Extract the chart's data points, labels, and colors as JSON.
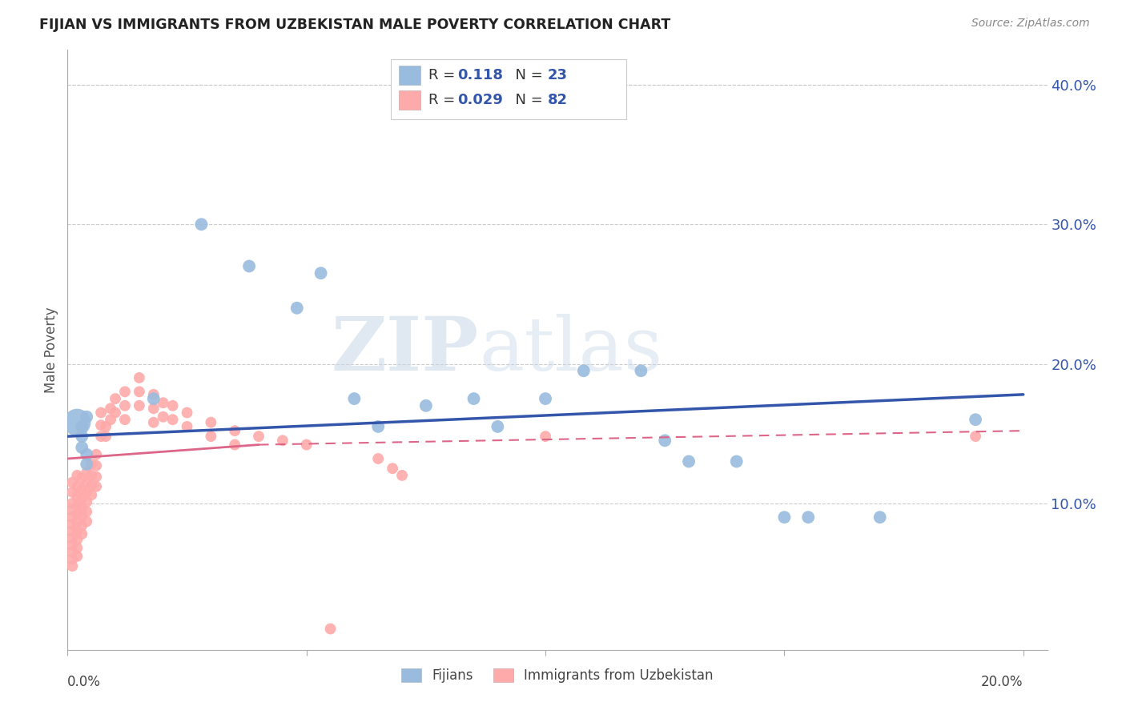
{
  "title": "FIJIAN VS IMMIGRANTS FROM UZBEKISTAN MALE POVERTY CORRELATION CHART",
  "source": "Source: ZipAtlas.com",
  "ylabel": "Male Poverty",
  "legend_blue_label": "Fijians",
  "legend_pink_label": "Immigrants from Uzbekistan",
  "xlim": [
    0.0,
    0.205
  ],
  "ylim": [
    -0.005,
    0.425
  ],
  "yticks": [
    0.1,
    0.2,
    0.3,
    0.4
  ],
  "ytick_labels": [
    "10.0%",
    "20.0%",
    "30.0%",
    "40.0%"
  ],
  "background_color": "#ffffff",
  "blue_color": "#99bbdd",
  "pink_color": "#ffaaaa",
  "blue_line_color": "#3355aa",
  "pink_line_color": "#dd6688",
  "watermark_zip": "ZIP",
  "watermark_atlas": "atlas",
  "fijian_points": [
    [
      0.003,
      0.155
    ],
    [
      0.003,
      0.148
    ],
    [
      0.003,
      0.14
    ],
    [
      0.004,
      0.135
    ],
    [
      0.004,
      0.128
    ],
    [
      0.004,
      0.162
    ],
    [
      0.018,
      0.175
    ],
    [
      0.028,
      0.3
    ],
    [
      0.038,
      0.27
    ],
    [
      0.048,
      0.24
    ],
    [
      0.053,
      0.265
    ],
    [
      0.06,
      0.175
    ],
    [
      0.065,
      0.155
    ],
    [
      0.075,
      0.17
    ],
    [
      0.085,
      0.175
    ],
    [
      0.09,
      0.155
    ],
    [
      0.1,
      0.175
    ],
    [
      0.108,
      0.195
    ],
    [
      0.12,
      0.195
    ],
    [
      0.125,
      0.145
    ],
    [
      0.13,
      0.13
    ],
    [
      0.14,
      0.13
    ],
    [
      0.15,
      0.09
    ],
    [
      0.155,
      0.09
    ],
    [
      0.17,
      0.09
    ],
    [
      0.19,
      0.16
    ]
  ],
  "uzbek_points": [
    [
      0.001,
      0.115
    ],
    [
      0.001,
      0.108
    ],
    [
      0.001,
      0.1
    ],
    [
      0.001,
      0.095
    ],
    [
      0.001,
      0.09
    ],
    [
      0.001,
      0.085
    ],
    [
      0.001,
      0.08
    ],
    [
      0.001,
      0.075
    ],
    [
      0.001,
      0.07
    ],
    [
      0.001,
      0.065
    ],
    [
      0.001,
      0.06
    ],
    [
      0.001,
      0.055
    ],
    [
      0.002,
      0.12
    ],
    [
      0.002,
      0.112
    ],
    [
      0.002,
      0.105
    ],
    [
      0.002,
      0.098
    ],
    [
      0.002,
      0.092
    ],
    [
      0.002,
      0.086
    ],
    [
      0.002,
      0.08
    ],
    [
      0.002,
      0.074
    ],
    [
      0.002,
      0.068
    ],
    [
      0.002,
      0.062
    ],
    [
      0.003,
      0.118
    ],
    [
      0.003,
      0.11
    ],
    [
      0.003,
      0.104
    ],
    [
      0.003,
      0.097
    ],
    [
      0.003,
      0.091
    ],
    [
      0.003,
      0.084
    ],
    [
      0.003,
      0.078
    ],
    [
      0.004,
      0.122
    ],
    [
      0.004,
      0.115
    ],
    [
      0.004,
      0.108
    ],
    [
      0.004,
      0.101
    ],
    [
      0.004,
      0.094
    ],
    [
      0.004,
      0.087
    ],
    [
      0.005,
      0.128
    ],
    [
      0.005,
      0.12
    ],
    [
      0.005,
      0.113
    ],
    [
      0.005,
      0.106
    ],
    [
      0.006,
      0.135
    ],
    [
      0.006,
      0.127
    ],
    [
      0.006,
      0.119
    ],
    [
      0.006,
      0.112
    ],
    [
      0.007,
      0.165
    ],
    [
      0.007,
      0.156
    ],
    [
      0.007,
      0.148
    ],
    [
      0.008,
      0.155
    ],
    [
      0.008,
      0.148
    ],
    [
      0.009,
      0.168
    ],
    [
      0.009,
      0.16
    ],
    [
      0.01,
      0.175
    ],
    [
      0.01,
      0.165
    ],
    [
      0.012,
      0.18
    ],
    [
      0.012,
      0.17
    ],
    [
      0.012,
      0.16
    ],
    [
      0.015,
      0.19
    ],
    [
      0.015,
      0.18
    ],
    [
      0.015,
      0.17
    ],
    [
      0.018,
      0.178
    ],
    [
      0.018,
      0.168
    ],
    [
      0.018,
      0.158
    ],
    [
      0.02,
      0.172
    ],
    [
      0.02,
      0.162
    ],
    [
      0.022,
      0.17
    ],
    [
      0.022,
      0.16
    ],
    [
      0.025,
      0.165
    ],
    [
      0.025,
      0.155
    ],
    [
      0.03,
      0.158
    ],
    [
      0.03,
      0.148
    ],
    [
      0.035,
      0.152
    ],
    [
      0.035,
      0.142
    ],
    [
      0.04,
      0.148
    ],
    [
      0.045,
      0.145
    ],
    [
      0.05,
      0.142
    ],
    [
      0.055,
      0.01
    ],
    [
      0.065,
      0.132
    ],
    [
      0.068,
      0.125
    ],
    [
      0.07,
      0.12
    ],
    [
      0.1,
      0.148
    ],
    [
      0.19,
      0.148
    ]
  ]
}
